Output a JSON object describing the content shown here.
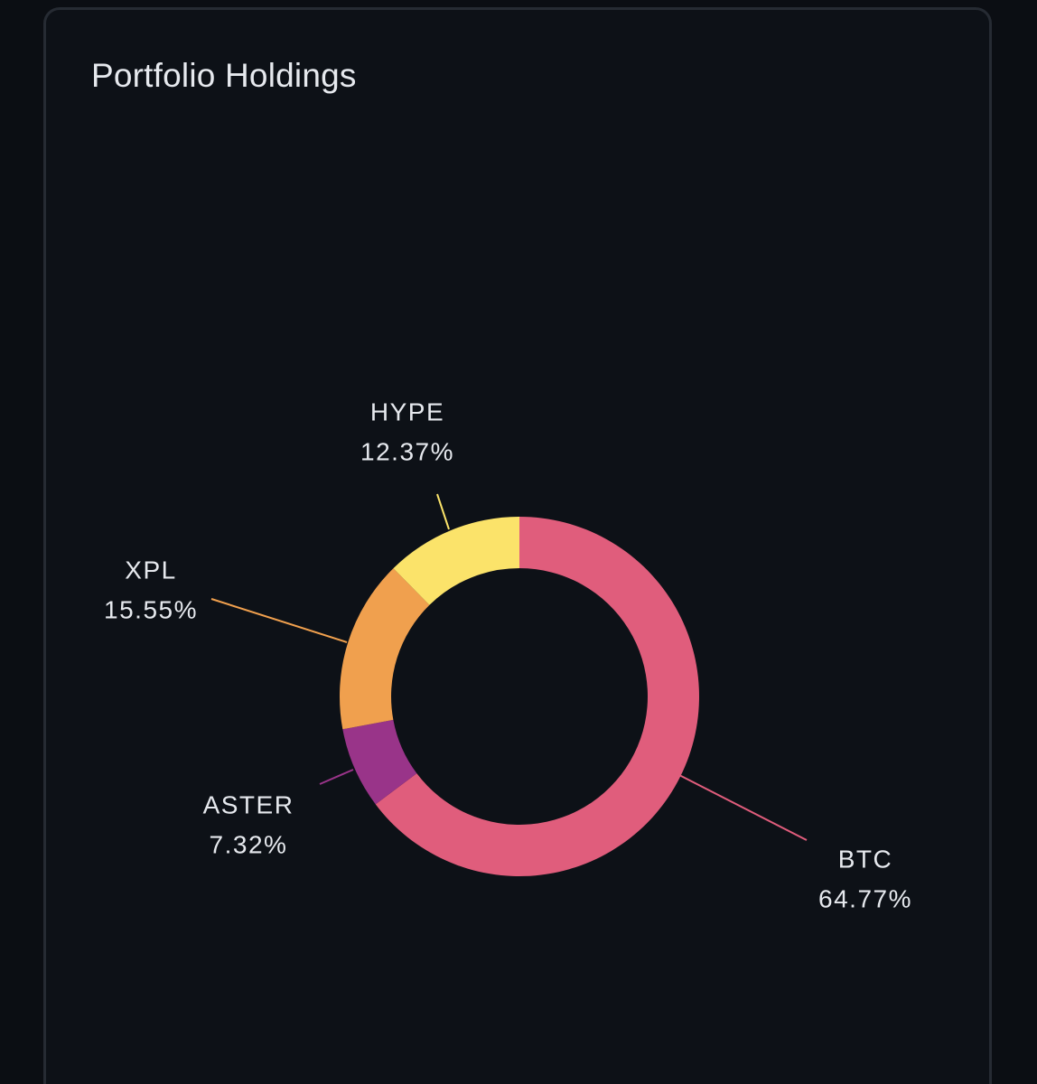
{
  "card": {
    "title": "Portfolio Holdings"
  },
  "colors": {
    "background": "#0d1117",
    "border": "#262b33",
    "text": "#e6e9ee"
  },
  "chart_data": {
    "type": "pie",
    "donut": true,
    "title": "Portfolio Holdings",
    "labels_position": "outside-with-leader-lines",
    "slices": [
      {
        "name": "BTC",
        "value": 64.77,
        "label": "64.77%",
        "color": "#e05d7c"
      },
      {
        "name": "ASTER",
        "value": 7.32,
        "label": "7.32%",
        "color": "#993489"
      },
      {
        "name": "XPL",
        "value": 15.55,
        "label": "15.55%",
        "color": "#f0a04e"
      },
      {
        "name": "HYPE",
        "value": 12.37,
        "label": "12.37%",
        "color": "#fbe36a"
      }
    ]
  }
}
